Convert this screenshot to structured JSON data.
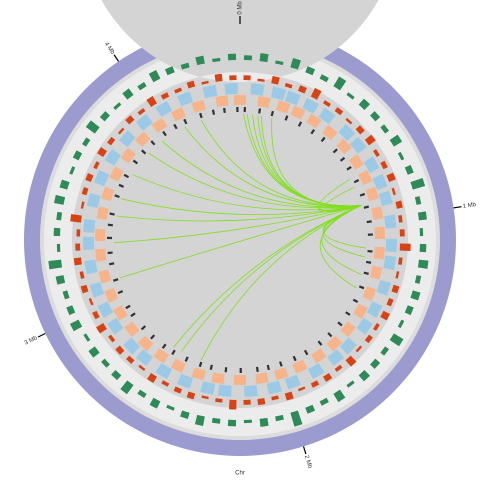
{
  "chart_data": {
    "type": "circos",
    "chromosome": "Chr",
    "xlim": [
      0,
      4.42
    ],
    "xticks": [
      {
        "value": 0,
        "label": "0 Mb"
      },
      {
        "value": 1,
        "label": "1 Mb"
      },
      {
        "value": 2,
        "label": "2 Mb"
      },
      {
        "value": 3,
        "label": "3 Mb"
      },
      {
        "value": 4,
        "label": "4 Mb"
      }
    ],
    "ring_color": "#9b9bd0",
    "histogram_outer": {
      "color": "#2e8b57",
      "values": [
        0.3,
        0.5,
        0.2,
        0.6,
        0.4,
        0.3,
        0.7,
        0.2,
        0.5,
        0.4,
        0.3,
        0.6,
        0.2,
        0.4,
        0.8,
        0.3,
        0.5,
        0.2,
        0.4,
        0.6,
        0.3,
        0.5,
        0.4,
        0.2,
        0.7,
        0.3,
        0.4,
        0.5,
        0.2,
        0.6,
        0.3,
        0.4,
        0.9,
        0.3,
        0.5,
        0.2,
        0.4,
        0.3,
        0.6,
        0.4,
        0.2,
        0.5,
        0.3,
        0.7,
        0.4,
        0.3,
        0.5,
        0.2,
        0.6,
        0.4,
        0.3,
        0.5,
        0.8,
        0.2,
        0.4,
        0.3,
        0.6,
        0.5,
        0.2,
        0.4,
        0.3,
        0.7,
        0.4,
        0.2,
        0.5,
        0.3,
        0.6,
        0.4,
        0.3,
        0.5,
        0.2,
        0.4
      ]
    },
    "histogram_inner": {
      "color": "#d84315",
      "values": [
        0.4,
        0.2,
        0.6,
        0.3,
        0.5,
        0.8,
        0.3,
        0.4,
        0.2,
        0.5,
        0.7,
        0.3,
        0.4,
        0.6,
        0.2,
        0.5,
        0.3,
        0.4,
        0.9,
        0.3,
        0.2,
        0.5,
        0.4,
        0.6,
        0.3,
        0.4,
        0.2,
        0.7,
        0.3,
        0.5,
        0.4,
        0.2,
        0.6,
        0.3,
        0.5,
        0.4,
        0.8,
        0.3,
        0.2,
        0.5,
        0.4,
        0.3,
        0.6,
        0.2,
        0.4,
        0.5,
        0.3,
        0.7,
        0.4,
        0.2,
        0.5,
        0.3,
        0.6,
        0.4,
        0.3,
        0.9,
        0.2,
        0.4,
        0.5,
        0.3,
        0.6,
        0.4,
        0.2,
        0.5,
        0.3,
        0.7,
        0.4,
        0.3,
        0.5,
        0.2,
        0.6,
        0.4
      ]
    },
    "genes_plus": {
      "color": "#9ccae6",
      "positions": [
        0.05,
        0.15,
        0.22,
        0.31,
        0.4,
        0.52,
        0.6,
        0.71,
        0.8,
        0.88,
        0.99,
        1.1,
        1.18,
        1.3,
        1.41,
        1.5,
        1.62,
        1.7,
        1.81,
        1.93,
        2.02,
        2.13,
        2.25,
        2.33,
        2.44,
        2.55,
        2.66,
        2.74,
        2.86,
        2.95,
        3.05,
        3.16,
        3.27,
        3.35,
        3.47,
        3.58,
        3.69,
        3.8,
        3.91,
        4.02,
        4.13,
        4.25,
        4.35
      ]
    },
    "genes_minus": {
      "color": "#f7b48a",
      "positions": [
        0.09,
        0.19,
        0.27,
        0.36,
        0.46,
        0.56,
        0.66,
        0.75,
        0.84,
        0.94,
        1.04,
        1.14,
        1.24,
        1.35,
        1.45,
        1.56,
        1.66,
        1.76,
        1.87,
        1.97,
        2.07,
        2.18,
        2.29,
        2.39,
        2.5,
        2.6,
        2.7,
        2.8,
        2.9,
        3.0,
        3.1,
        3.21,
        3.31,
        3.42,
        3.52,
        3.63,
        3.74,
        3.85,
        3.96,
        4.07,
        4.18,
        4.3,
        4.39
      ]
    },
    "features": {
      "color": "#333333",
      "positions": [
        0.02,
        0.1,
        0.17,
        0.25,
        0.33,
        0.41,
        0.48,
        0.57,
        0.63,
        0.69,
        0.77,
        0.85,
        0.92,
        1.0,
        1.07,
        1.16,
        1.22,
        1.28,
        1.36,
        1.44,
        1.52,
        1.59,
        1.67,
        1.74,
        1.83,
        1.9,
        1.98,
        2.05,
        2.11,
        2.2,
        2.28,
        2.36,
        2.42,
        2.5,
        2.58,
        2.64,
        2.72,
        2.79,
        2.88,
        2.93,
        3.02,
        3.09,
        3.18,
        3.24,
        3.32,
        3.39,
        3.45,
        3.55,
        3.61,
        3.67,
        3.76,
        3.83,
        3.9,
        3.98,
        4.05,
        4.11,
        4.2,
        4.27,
        4.33,
        4.4
      ]
    },
    "link_color": "#7fe01a",
    "links": [
      [
        0.91,
        0.02
      ],
      [
        0.91,
        0.04
      ],
      [
        0.91,
        0.07
      ],
      [
        0.91,
        0.1
      ],
      [
        0.91,
        0.12
      ],
      [
        0.91,
        0.18
      ],
      [
        0.91,
        0.75
      ],
      [
        0.91,
        0.8
      ],
      [
        0.91,
        1.15
      ],
      [
        0.91,
        1.2
      ],
      [
        0.91,
        1.3
      ],
      [
        0.91,
        1.38
      ],
      [
        0.91,
        2.43
      ],
      [
        0.91,
        2.55
      ],
      [
        0.91,
        2.6
      ],
      [
        0.91,
        3.1
      ],
      [
        0.91,
        3.3
      ],
      [
        0.91,
        3.45
      ],
      [
        0.91,
        3.55
      ],
      [
        0.91,
        3.7
      ],
      [
        0.91,
        3.85
      ],
      [
        0.91,
        3.95
      ],
      [
        0.91,
        4.1
      ],
      [
        0.91,
        4.2
      ]
    ]
  }
}
